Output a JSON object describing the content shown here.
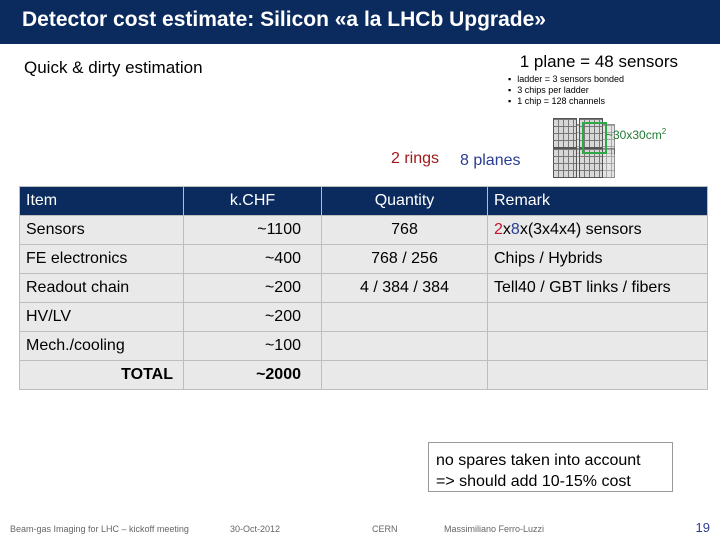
{
  "title": "Detector cost estimate: Silicon  «a la LHCb Upgrade»",
  "subtitle": "Quick & dirty estimation",
  "plane_label": "1 plane = 48 sensors",
  "plane_bullets": [
    "ladder = 3 sensors bonded",
    "3 chips per ladder",
    "1 chip = 128 channels"
  ],
  "rings_label": "2 rings",
  "planes_label": "8 planes",
  "sensor_size": "~30x30cm",
  "sensor_size_exp": "2",
  "table": {
    "headers": [
      "Item",
      "k.CHF",
      "Quantity",
      "Remark"
    ],
    "rows": [
      {
        "item": "Sensors",
        "kchf": "~1100",
        "qty": "768",
        "remark_parts": [
          "2",
          "x",
          "8",
          "x(3x4x4) sensors"
        ]
      },
      {
        "item": "FE electronics",
        "kchf": "~400",
        "qty": "768 / 256",
        "remark": "Chips / Hybrids"
      },
      {
        "item": "Readout chain",
        "kchf": "~200",
        "qty": "4 / 384 / 384",
        "remark": "Tell40 / GBT links / fibers"
      },
      {
        "item": "HV/LV",
        "kchf": "~200",
        "qty": "",
        "remark": ""
      },
      {
        "item": "Mech./cooling",
        "kchf": "~100",
        "qty": "",
        "remark": ""
      }
    ],
    "total_label": "TOTAL",
    "total_value": "~2000"
  },
  "note_line1": "no spares taken into account",
  "note_line2": "=> should add 10-15% cost",
  "footer": {
    "event": "Beam-gas Imaging for LHC – kickoff meeting",
    "date": "30-Oct-2012",
    "org": "CERN",
    "author": "Massimiliano Ferro-Luzzi",
    "page": "19"
  },
  "colors": {
    "header_bg": "#0b2b5e",
    "rings": "#a01a1a",
    "planes": "#2a3d91",
    "size": "#1f7a33"
  }
}
